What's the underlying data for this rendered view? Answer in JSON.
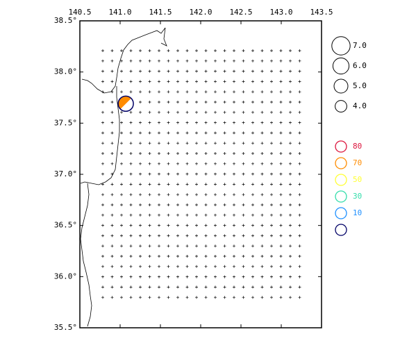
{
  "map": {
    "xlim": [
      140.5,
      143.5
    ],
    "ylim": [
      35.5,
      38.5
    ],
    "xticks": [
      140.5,
      {
        "value": 141.0,
        "label": "141.0"
      },
      141.5,
      {
        "value": 142.0,
        "label": "142.0"
      },
      142.5,
      {
        "value": 143.0,
        "label": "143.0"
      },
      143.5
    ],
    "yticks": [
      {
        "value": 38.5,
        "label": "38.5°"
      },
      {
        "value": 38.0,
        "label": "38.0°"
      },
      {
        "value": 37.5,
        "label": "37.5°"
      },
      {
        "value": 37.0,
        "label": "37.0°"
      },
      {
        "value": 36.5,
        "label": "36.5°"
      },
      {
        "value": 36.0,
        "label": "36.0°"
      },
      {
        "value": 35.5,
        "label": "35.5°"
      }
    ],
    "event": {
      "lon": 141.07,
      "lat": 37.69,
      "magnitude": 5.6,
      "depth": 70
    },
    "magnitude_legend": [
      {
        "value": 7.0,
        "label": "7.0"
      },
      {
        "value": 6.0,
        "label": "6.0"
      },
      {
        "value": 5.0,
        "label": "5.0"
      },
      {
        "value": 4.0,
        "label": "4.0"
      }
    ],
    "depth_legend": {
      "labels": [
        80,
        70,
        50,
        30,
        10,
        null
      ],
      "colors": [
        "#dc143c",
        "#ff8c00",
        "#ffff33",
        "#33ddaa",
        "#1e90ff",
        "#000066"
      ]
    }
  }
}
